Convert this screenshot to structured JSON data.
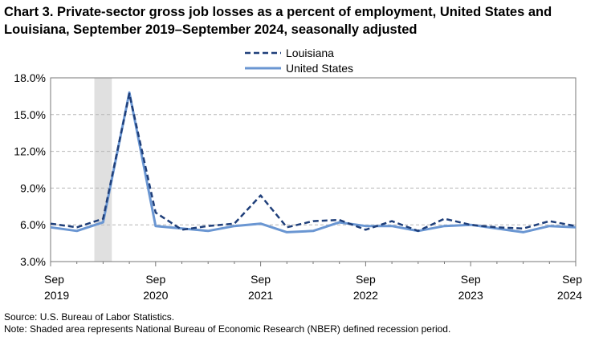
{
  "title": "Chart 3. Private-sector gross job losses as a percent of employment, United States and Louisiana, September 2019–September 2024, seasonally adjusted",
  "source": "Source: U.S. Bureau of Labor Statistics.",
  "note": "Note: Shaded area represents National Bureau of Economic Research (NBER) defined recession period.",
  "chart_data": {
    "type": "line",
    "x": [
      "Sep 2019",
      "Dec 2019",
      "Mar 2020",
      "Jun 2020",
      "Sep 2020",
      "Dec 2020",
      "Mar 2021",
      "Jun 2021",
      "Sep 2021",
      "Dec 2021",
      "Mar 2022",
      "Jun 2022",
      "Sep 2022",
      "Dec 2022",
      "Mar 2023",
      "Jun 2023",
      "Sep 2023",
      "Dec 2023",
      "Mar 2024",
      "Jun 2024",
      "Sep 2024"
    ],
    "series": [
      {
        "name": "Louisiana",
        "color": "#1f3f7a",
        "dash": "dashed",
        "values": [
          6.1,
          5.8,
          6.5,
          16.7,
          7.0,
          5.6,
          5.9,
          6.1,
          8.4,
          5.8,
          6.3,
          6.4,
          5.6,
          6.3,
          5.5,
          6.5,
          6.0,
          5.8,
          5.7,
          6.3,
          5.9
        ]
      },
      {
        "name": "United States",
        "color": "#6a96d2",
        "dash": "solid",
        "values": [
          5.8,
          5.5,
          6.2,
          16.8,
          5.9,
          5.7,
          5.5,
          5.9,
          6.1,
          5.4,
          5.5,
          6.2,
          5.9,
          5.9,
          5.5,
          5.9,
          6.0,
          5.7,
          5.4,
          5.9,
          5.8
        ]
      }
    ],
    "ylim": [
      3.0,
      18.0
    ],
    "yticks": [
      "3.0%",
      "6.0%",
      "9.0%",
      "12.0%",
      "15.0%",
      "18.0%"
    ],
    "xtick_labels": [
      {
        "month": "Sep",
        "year": "2019"
      },
      {
        "month": "Sep",
        "year": "2020"
      },
      {
        "month": "Sep",
        "year": "2021"
      },
      {
        "month": "Sep",
        "year": "2022"
      },
      {
        "month": "Sep",
        "year": "2023"
      },
      {
        "month": "Sep",
        "year": "2024"
      }
    ],
    "recession": {
      "start": "Feb 2020",
      "end": "Apr 2020"
    },
    "grid": "horizontal-dashed",
    "legend": "top-center"
  }
}
